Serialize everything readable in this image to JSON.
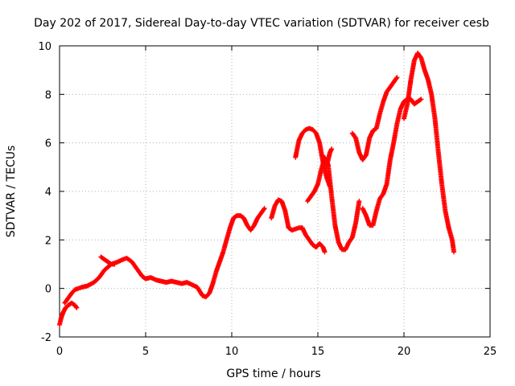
{
  "chart_data": {
    "type": "scatter",
    "title": "Day 202 of 2017, Sidereal Day-to-day VTEC variation (SDTVAR) for receiver cesb",
    "xlabel": "GPS time / hours",
    "ylabel": "SDTVAR / TECUs",
    "xlim": [
      0,
      25
    ],
    "ylim": [
      -2,
      10
    ],
    "xticks": [
      "0",
      "5",
      "10",
      "15",
      "20",
      "25"
    ],
    "yticks": [
      "-2",
      "0",
      "2",
      "4",
      "6",
      "8",
      "10"
    ],
    "grid": true,
    "marker": "plus",
    "color": "#ff0000",
    "series": [
      {
        "x": [
          0,
          0.1,
          0.2,
          0.35,
          0.5,
          0.7,
          0.9,
          1.0
        ],
        "y": [
          -1.5,
          -1.2,
          -1.0,
          -0.8,
          -0.7,
          -0.6,
          -0.7,
          -0.8
        ]
      },
      {
        "x": [
          0.3,
          0.5,
          0.7,
          0.9,
          1.1,
          1.3,
          1.6,
          2.0,
          2.3,
          2.6,
          3.0,
          3.4,
          3.7,
          3.9,
          4.2,
          4.5,
          4.8,
          5.0,
          5.3,
          5.6,
          5.9,
          6.2,
          6.5,
          6.8,
          7.1,
          7.4,
          7.7,
          8.0,
          8.3,
          8.5,
          8.7,
          8.9,
          9.1,
          9.3,
          9.5,
          9.7,
          9.9,
          10.1,
          10.3,
          10.5,
          10.7,
          10.9,
          11.1,
          11.3,
          11.5,
          11.7,
          11.9
        ],
        "y": [
          -0.6,
          -0.4,
          -0.2,
          -0.05,
          0.0,
          0.05,
          0.1,
          0.25,
          0.45,
          0.75,
          1.0,
          1.1,
          1.2,
          1.25,
          1.1,
          0.8,
          0.5,
          0.4,
          0.45,
          0.35,
          0.3,
          0.25,
          0.3,
          0.25,
          0.2,
          0.25,
          0.15,
          0.05,
          -0.3,
          -0.35,
          -0.2,
          0.2,
          0.7,
          1.1,
          1.5,
          2.0,
          2.5,
          2.9,
          3.0,
          3.0,
          2.9,
          2.6,
          2.4,
          2.6,
          2.9,
          3.1,
          3.3
        ]
      },
      {
        "x": [
          2.4,
          2.6,
          2.8,
          3.0,
          3.2
        ],
        "y": [
          1.3,
          1.2,
          1.1,
          1.0,
          1.0
        ]
      },
      {
        "x": [
          12.3,
          12.5,
          12.7,
          12.9,
          13.1,
          13.3,
          13.5,
          13.7,
          13.9,
          14.1,
          14.3,
          14.5,
          14.7,
          14.9,
          15.1,
          15.3,
          15.4
        ],
        "y": [
          2.9,
          3.4,
          3.65,
          3.6,
          3.2,
          2.5,
          2.4,
          2.45,
          2.5,
          2.5,
          2.2,
          2.0,
          1.8,
          1.7,
          1.85,
          1.7,
          1.5
        ]
      },
      {
        "x": [
          13.7,
          13.9,
          14.1,
          14.3,
          14.5,
          14.7,
          14.9,
          15.1,
          15.3,
          15.5,
          15.7
        ],
        "y": [
          5.4,
          6.1,
          6.4,
          6.55,
          6.6,
          6.55,
          6.4,
          6.0,
          5.2,
          4.6,
          4.2
        ]
      },
      {
        "x": [
          14.4,
          14.6,
          14.8,
          15.0,
          15.2,
          15.4,
          15.6,
          15.8,
          16.0,
          16.2,
          16.4,
          16.6,
          16.8,
          17.0,
          17.2,
          17.4
        ],
        "y": [
          3.6,
          3.8,
          4.0,
          4.3,
          4.9,
          5.4,
          5.1,
          3.8,
          2.6,
          1.9,
          1.6,
          1.6,
          1.9,
          2.1,
          2.7,
          3.6
        ]
      },
      {
        "x": [
          15.5,
          15.6,
          15.7,
          15.8
        ],
        "y": [
          5.0,
          5.3,
          5.6,
          5.75
        ]
      },
      {
        "x": [
          17.0,
          17.2,
          17.4,
          17.6,
          17.8,
          18.0,
          18.2,
          18.4,
          18.6,
          18.8,
          19.0,
          19.2,
          19.4,
          19.6
        ],
        "y": [
          6.4,
          6.2,
          5.6,
          5.3,
          5.5,
          6.2,
          6.5,
          6.6,
          7.2,
          7.7,
          8.1,
          8.3,
          8.5,
          8.7
        ]
      },
      {
        "x": [
          17.6,
          17.8,
          18.0,
          18.2,
          18.4,
          18.6,
          18.8,
          19.0,
          19.2,
          19.4,
          19.6,
          19.8,
          20.0,
          20.2,
          20.4,
          20.6,
          20.8,
          21.0
        ],
        "y": [
          3.3,
          3.0,
          2.6,
          2.6,
          3.2,
          3.7,
          3.9,
          4.3,
          5.3,
          6.0,
          6.8,
          7.4,
          7.7,
          7.8,
          7.8,
          7.6,
          7.7,
          7.8
        ]
      },
      {
        "x": [
          20.0,
          20.2,
          20.4,
          20.6,
          20.8,
          21.0,
          21.2,
          21.4,
          21.6,
          21.8,
          22.0,
          22.2,
          22.4,
          22.6,
          22.8,
          22.9
        ],
        "y": [
          7.0,
          7.6,
          8.6,
          9.4,
          9.7,
          9.5,
          9.0,
          8.6,
          8.0,
          7.0,
          5.6,
          4.3,
          3.2,
          2.5,
          2.0,
          1.5
        ]
      }
    ]
  }
}
